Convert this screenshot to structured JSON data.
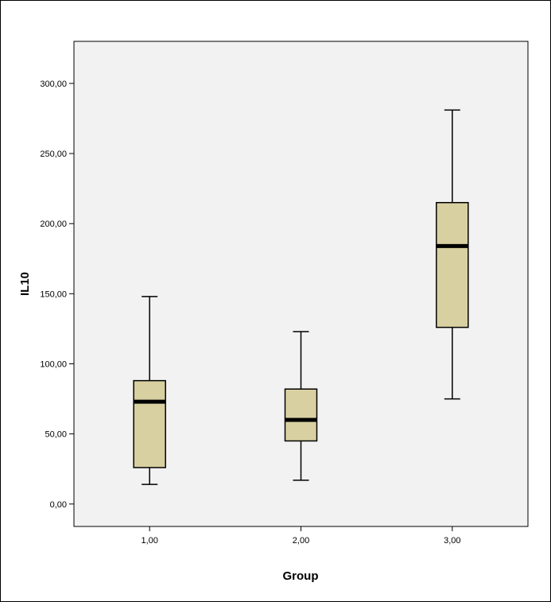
{
  "chart_data": {
    "type": "box",
    "title": "",
    "xlabel": "Group",
    "ylabel": "IL10",
    "ylim": [
      -16,
      330
    ],
    "y_ticks": [
      {
        "value": 0,
        "label": "0,00"
      },
      {
        "value": 50,
        "label": "50,00"
      },
      {
        "value": 100,
        "label": "100,00"
      },
      {
        "value": 150,
        "label": "150,00"
      },
      {
        "value": 200,
        "label": "200,00"
      },
      {
        "value": 250,
        "label": "250,00"
      },
      {
        "value": 300,
        "label": "300,00"
      }
    ],
    "categories": [
      "1,00",
      "2,00",
      "3,00"
    ],
    "boxes": [
      {
        "category": "1,00",
        "whisker_low": 14,
        "q1": 26,
        "median": 73,
        "q3": 88,
        "whisker_high": 148
      },
      {
        "category": "2,00",
        "whisker_low": 17,
        "q1": 45,
        "median": 60,
        "q3": 82,
        "whisker_high": 123
      },
      {
        "category": "3,00",
        "whisker_low": 75,
        "q1": 126,
        "median": 184,
        "q3": 215,
        "whisker_high": 281
      }
    ],
    "colors": {
      "plot_background": "#f2f2f2",
      "box_fill": "#d8d0a1",
      "box_stroke": "#000000",
      "median": "#000000"
    },
    "grid": false,
    "legend": "none"
  }
}
